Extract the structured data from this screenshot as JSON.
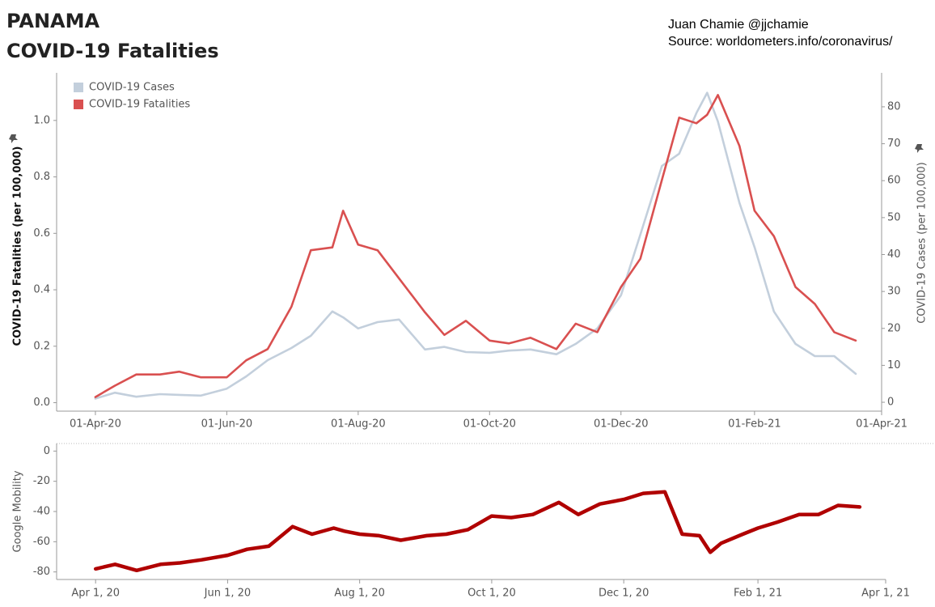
{
  "header": {
    "title": [
      "PANAMA",
      "COVID-19 Fatalities"
    ],
    "credit": [
      "Juan Chamie @jjchamie",
      "Source: worldometers.info/coronavirus/"
    ]
  },
  "chart_data": [
    {
      "type": "line",
      "x": [
        "2020-04-01",
        "2020-04-10",
        "2020-04-20",
        "2020-05-01",
        "2020-05-10",
        "2020-05-20",
        "2020-06-01",
        "2020-06-10",
        "2020-06-20",
        "2020-07-01",
        "2020-07-10",
        "2020-07-20",
        "2020-07-25",
        "2020-08-01",
        "2020-08-10",
        "2020-08-20",
        "2020-09-01",
        "2020-09-10",
        "2020-09-20",
        "2020-10-01",
        "2020-10-10",
        "2020-10-20",
        "2020-11-01",
        "2020-11-10",
        "2020-11-20",
        "2020-12-01",
        "2020-12-10",
        "2020-12-20",
        "2020-12-28",
        "2021-01-05",
        "2021-01-10",
        "2021-01-15",
        "2021-01-25",
        "2021-02-01",
        "2021-02-10",
        "2021-02-20",
        "2021-03-01",
        "2021-03-10",
        "2021-03-20"
      ],
      "series": [
        {
          "name": "COVID-19 Cases",
          "color": "#c3cfdc",
          "axis": "y2",
          "values": [
            1,
            2.6,
            1.5,
            2.2,
            2,
            1.8,
            3.7,
            7,
            11.4,
            14.7,
            18,
            24.6,
            23,
            20,
            21.7,
            22.4,
            14.3,
            15,
            13.6,
            13.4,
            14,
            14.3,
            13,
            15.8,
            20,
            29,
            45.4,
            64,
            67.3,
            78.3,
            83.8,
            76,
            54,
            42,
            24.6,
            15.8,
            12.5,
            12.5,
            7.7
          ]
        },
        {
          "name": "COVID-19 Fatalities",
          "color": "#d95050",
          "values": [
            0.02,
            0.06,
            0.1,
            0.1,
            0.11,
            0.09,
            0.09,
            0.15,
            0.19,
            0.34,
            0.54,
            0.55,
            0.68,
            0.56,
            0.54,
            0.44,
            0.32,
            0.24,
            0.29,
            0.22,
            0.21,
            0.23,
            0.19,
            0.28,
            0.25,
            0.41,
            0.51,
            0.79,
            1.01,
            0.99,
            1.02,
            1.09,
            0.91,
            0.68,
            0.59,
            0.41,
            0.35,
            0.25,
            0.22
          ]
        }
      ],
      "ylabel": "COVID-19 Fatalities (per 100,000)",
      "y2label": "COVID-19 Cases (per 100,000)",
      "xlim": [
        "2020-03-14",
        "2021-04-01"
      ],
      "xticks": [
        {
          "value": "2020-04-01",
          "label": "01-Apr-20"
        },
        {
          "value": "2020-06-01",
          "label": "01-Jun-20"
        },
        {
          "value": "2020-08-01",
          "label": "01-Aug-20"
        },
        {
          "value": "2020-10-01",
          "label": "01-Oct-20"
        },
        {
          "value": "2020-12-01",
          "label": "01-Dec-20"
        },
        {
          "value": "2021-02-01",
          "label": "01-Feb-21"
        },
        {
          "value": "2021-04-01",
          "label": "01-Apr-21"
        }
      ],
      "ylim": [
        -0.03,
        1.14
      ],
      "yticks": [
        {
          "value": 0,
          "label": "0.0"
        },
        0.2,
        0.4,
        0.6,
        0.8,
        {
          "value": 1,
          "label": "1.0"
        }
      ],
      "y2lim": [
        -2.4,
        87
      ],
      "y2ticks": [
        0,
        10,
        20,
        30,
        40,
        50,
        60,
        70,
        80
      ],
      "legend": "upper left"
    },
    {
      "type": "line",
      "x": [
        "2020-04-01",
        "2020-04-10",
        "2020-04-20",
        "2020-05-01",
        "2020-05-10",
        "2020-05-20",
        "2020-06-01",
        "2020-06-10",
        "2020-06-20",
        "2020-07-01",
        "2020-07-10",
        "2020-07-20",
        "2020-07-25",
        "2020-08-01",
        "2020-08-10",
        "2020-08-20",
        "2020-09-01",
        "2020-09-10",
        "2020-09-20",
        "2020-10-01",
        "2020-10-10",
        "2020-10-20",
        "2020-11-01",
        "2020-11-10",
        "2020-11-20",
        "2020-12-01",
        "2020-12-10",
        "2020-12-20",
        "2020-12-28",
        "2021-01-05",
        "2021-01-10",
        "2021-01-15",
        "2021-01-25",
        "2021-02-01",
        "2021-02-10",
        "2021-02-20",
        "2021-03-01",
        "2021-03-10",
        "2021-03-20"
      ],
      "series": [
        {
          "color": "#b00000",
          "values": [
            -78,
            -75,
            -79,
            -75,
            -74,
            -72,
            -69,
            -65,
            -63,
            -50,
            -55,
            -51,
            -53,
            -55,
            -56,
            -59,
            -56,
            -55,
            -52,
            -43,
            -44,
            -42,
            -34,
            -42,
            -35,
            -32,
            -28,
            -27,
            -55,
            -56,
            -67,
            -61,
            -55,
            -51,
            -47,
            -42,
            -42,
            -36,
            -37
          ]
        }
      ],
      "ylabel": "Google Mobility",
      "xlim": [
        "2020-03-14",
        "2021-04-01"
      ],
      "xticks": [
        {
          "value": "2020-04-01",
          "label": "Apr 1, 20"
        },
        {
          "value": "2020-06-01",
          "label": "Jun 1, 20"
        },
        {
          "value": "2020-08-01",
          "label": "Aug 1, 20"
        },
        {
          "value": "2020-10-01",
          "label": "Oct 1, 20"
        },
        {
          "value": "2020-12-01",
          "label": "Dec 1, 20"
        },
        {
          "value": "2021-02-01",
          "label": "Feb 1, 21"
        },
        {
          "value": "2021-04-01",
          "label": "Apr 1, 21"
        }
      ],
      "ylim": [
        -85,
        5
      ],
      "yticks": [
        -80,
        -60,
        -40,
        -20,
        0
      ]
    }
  ]
}
